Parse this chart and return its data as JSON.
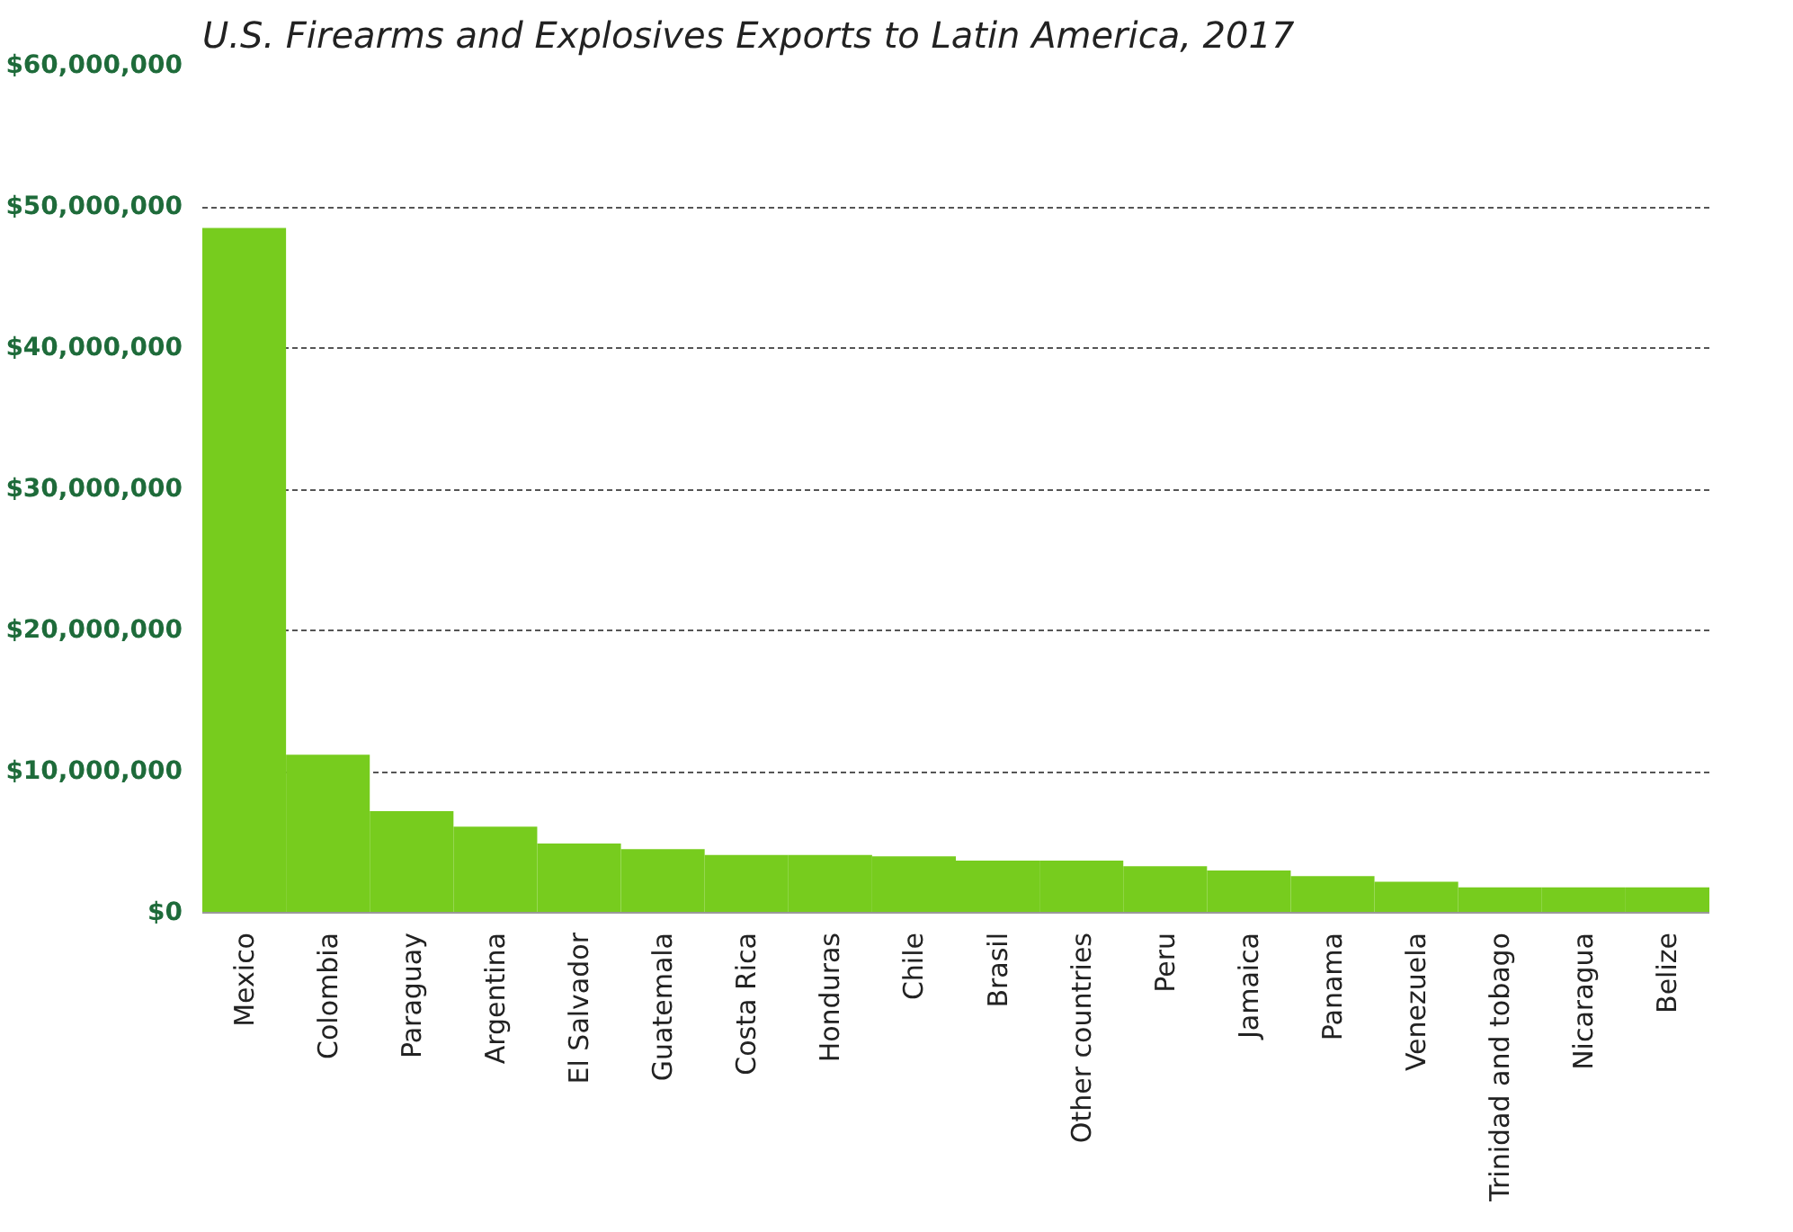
{
  "chart_data": {
    "type": "bar",
    "title": "U.S. Firearms and Explosives Exports to Latin America, 2017",
    "categories": [
      "Mexico",
      "Colombia",
      "Paraguay",
      "Argentina",
      "El Salvador",
      "Guatemala",
      "Costa Rica",
      "Honduras",
      "Chile",
      "Brasil",
      "Other countries",
      "Peru",
      "Jamaica",
      "Panama",
      "Venezuela",
      "Trinidad and tobago",
      "Nicaragua",
      "Belize"
    ],
    "values": [
      48500000,
      11200000,
      7200000,
      6100000,
      4900000,
      4500000,
      4100000,
      4100000,
      4000000,
      3700000,
      3700000,
      3300000,
      3000000,
      2600000,
      2200000,
      1800000,
      1800000,
      1800000
    ],
    "color": "#77cc1e",
    "ylim": [
      0,
      60000000
    ],
    "yticks": [
      {
        "value": 0,
        "label": "$0"
      },
      {
        "value": 10000000,
        "label": "$10,000,000"
      },
      {
        "value": 20000000,
        "label": "$20,000,000"
      },
      {
        "value": 30000000,
        "label": "$30,000,000"
      },
      {
        "value": 40000000,
        "label": "$40,000,000"
      },
      {
        "value": 50000000,
        "label": "$50,000,000"
      },
      {
        "value": 60000000,
        "label": "$60,000,000"
      }
    ],
    "grid": "y"
  }
}
